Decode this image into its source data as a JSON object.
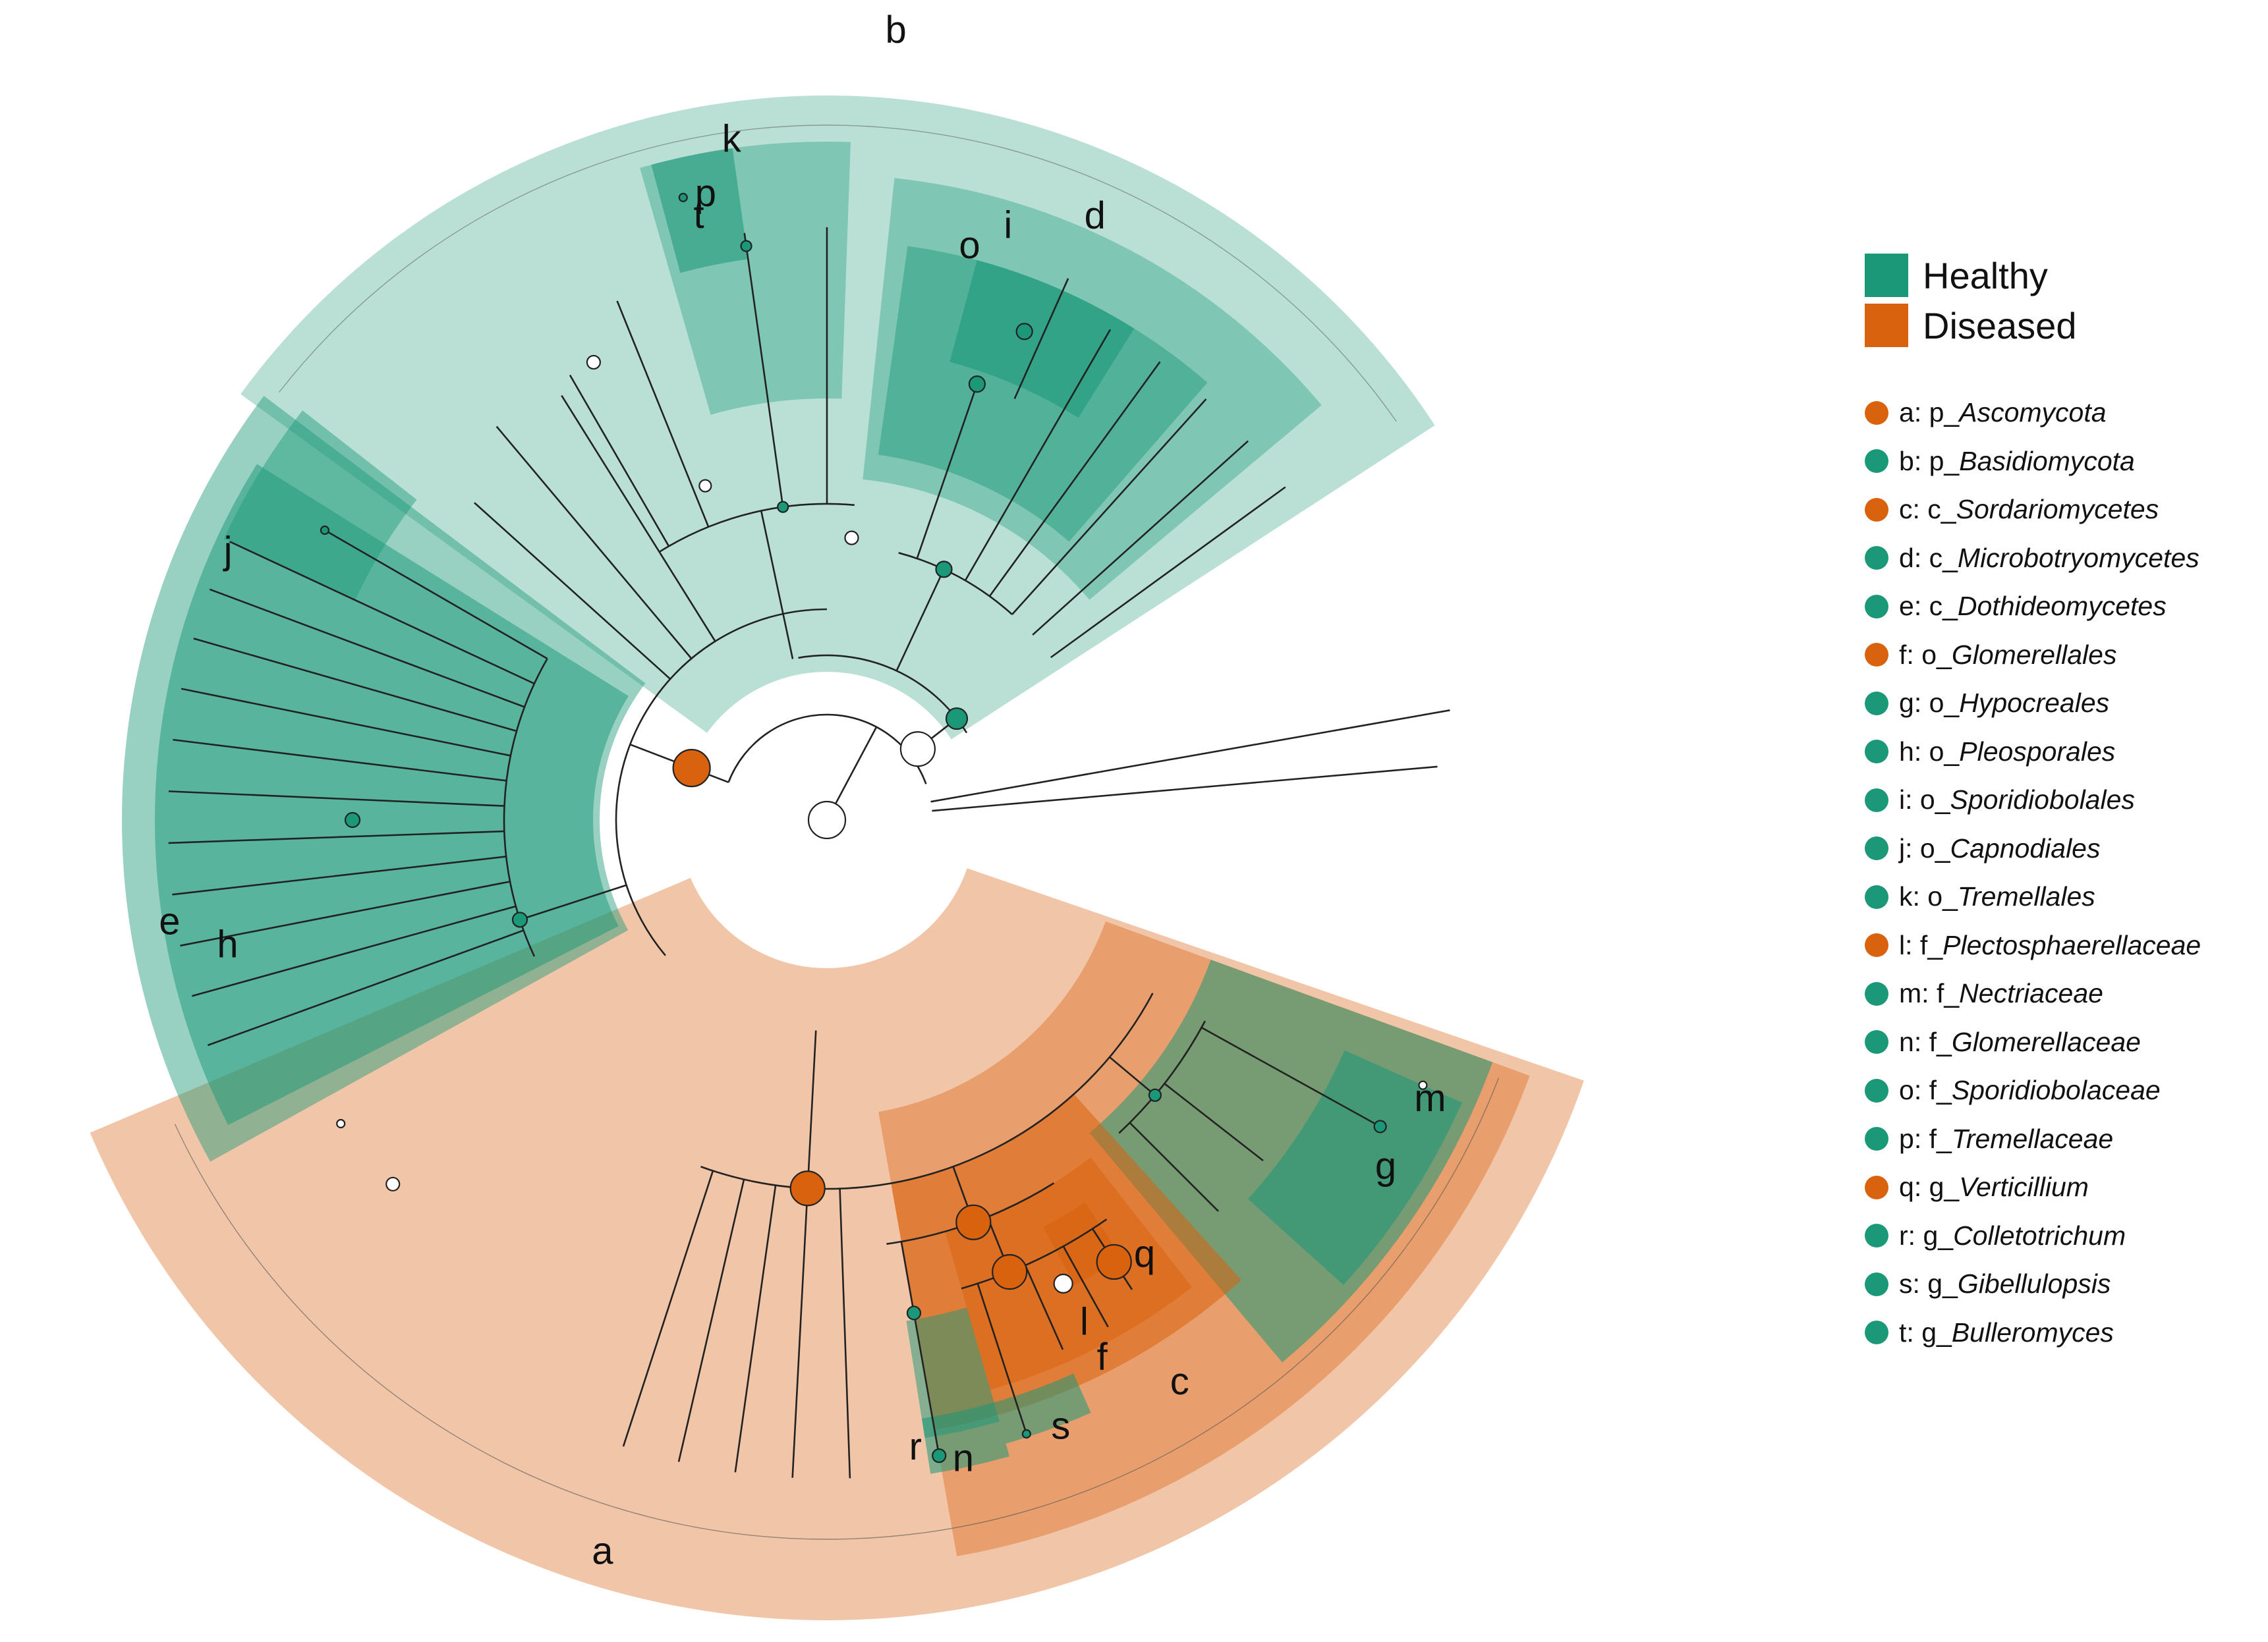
{
  "groups": [
    {
      "label": "Healthy",
      "color": "#1a9878"
    },
    {
      "label": "Diseased",
      "color": "#d9620e"
    }
  ],
  "taxa": [
    {
      "key": "a",
      "rank": "p",
      "name": "Ascomycota",
      "group": 1
    },
    {
      "key": "b",
      "rank": "p",
      "name": "Basidiomycota",
      "group": 0
    },
    {
      "key": "c",
      "rank": "c",
      "name": "Sordariomycetes",
      "group": 1
    },
    {
      "key": "d",
      "rank": "c",
      "name": "Microbotryomycetes",
      "group": 0
    },
    {
      "key": "e",
      "rank": "c",
      "name": "Dothideomycetes",
      "group": 0
    },
    {
      "key": "f",
      "rank": "o",
      "name": "Glomerellales",
      "group": 1
    },
    {
      "key": "g",
      "rank": "o",
      "name": "Hypocreales",
      "group": 0
    },
    {
      "key": "h",
      "rank": "o",
      "name": "Pleosporales",
      "group": 0
    },
    {
      "key": "i",
      "rank": "o",
      "name": "Sporidiobolales",
      "group": 0
    },
    {
      "key": "j",
      "rank": "o",
      "name": "Capnodiales",
      "group": 0
    },
    {
      "key": "k",
      "rank": "o",
      "name": "Tremellales",
      "group": 0
    },
    {
      "key": "l",
      "rank": "f",
      "name": "Plectosphaerellaceae",
      "group": 1
    },
    {
      "key": "m",
      "rank": "f",
      "name": "Nectriaceae",
      "group": 0
    },
    {
      "key": "n",
      "rank": "f",
      "name": "Glomerellaceae",
      "group": 0
    },
    {
      "key": "o",
      "rank": "f",
      "name": "Sporidiobolaceae",
      "group": 0
    },
    {
      "key": "p",
      "rank": "f",
      "name": "Tremellaceae",
      "group": 0
    },
    {
      "key": "q",
      "rank": "g",
      "name": "Verticillium",
      "group": 1
    },
    {
      "key": "r",
      "rank": "g",
      "name": "Colletotrichum",
      "group": 0
    },
    {
      "key": "s",
      "rank": "g",
      "name": "Gibellulopsis",
      "group": 0
    },
    {
      "key": "t",
      "rank": "g",
      "name": "Bulleromyces",
      "group": 0
    }
  ]
}
